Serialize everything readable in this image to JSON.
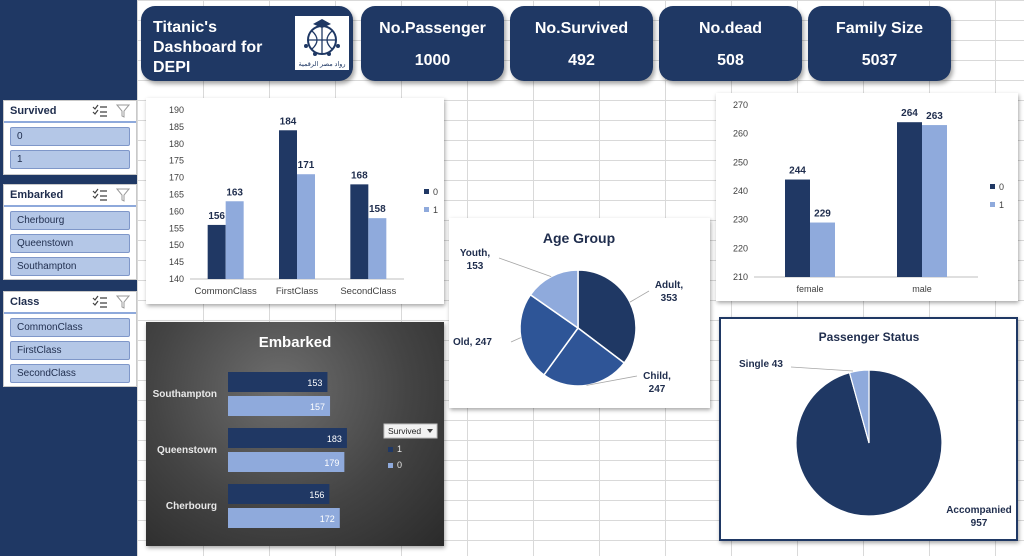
{
  "colors": {
    "navy": "#1f3864",
    "dark_bar": "#203864",
    "light_bar": "#8faadc",
    "pie_mid": "#2f5597"
  },
  "header": {
    "title": "Titanic's Dashboard for DEPI",
    "logo_caption": "رواد مصر الرقمية",
    "kpis": [
      {
        "label": "No.Passenger",
        "value": "1000"
      },
      {
        "label": "No.Survived",
        "value": "492"
      },
      {
        "label": "No.dead",
        "value": "508"
      },
      {
        "label": "Family Size",
        "value": "5037"
      }
    ]
  },
  "slicers": [
    {
      "title": "Survived",
      "items": [
        "0",
        "1"
      ]
    },
    {
      "title": "Embarked",
      "items": [
        "Cherbourg",
        "Queenstown",
        "Southampton"
      ]
    },
    {
      "title": "Class",
      "items": [
        "CommonClass",
        "FirstClass",
        "SecondClass"
      ]
    }
  ],
  "chart_data": [
    {
      "type": "bar",
      "categories": [
        "CommonClass",
        "FirstClass",
        "SecondClass"
      ],
      "series": [
        {
          "name": "0",
          "values": [
            156,
            184,
            168
          ]
        },
        {
          "name": "1",
          "values": [
            163,
            171,
            158
          ]
        }
      ],
      "ylim": [
        140,
        190
      ],
      "yticks": [
        140,
        145,
        150,
        155,
        160,
        165,
        170,
        175,
        180,
        185,
        190
      ],
      "legend": "right",
      "grid": false
    },
    {
      "type": "bar",
      "categories": [
        "female",
        "male"
      ],
      "series": [
        {
          "name": "0",
          "values": [
            244,
            264
          ]
        },
        {
          "name": "1",
          "values": [
            229,
            263
          ]
        }
      ],
      "ylim": [
        210,
        270
      ],
      "yticks": [
        210,
        220,
        230,
        240,
        250,
        260,
        270
      ],
      "legend": "right",
      "grid": false
    },
    {
      "type": "pie",
      "title": "Age Group",
      "slices": [
        {
          "label": "Adult",
          "value": 353
        },
        {
          "label": "Child",
          "value": 247
        },
        {
          "label": "Old",
          "value": 247
        },
        {
          "label": "Youth",
          "value": 153
        }
      ]
    },
    {
      "type": "bar",
      "orientation": "horizontal",
      "title": "Embarked",
      "categories": [
        "Southampton",
        "Queenstown",
        "Cherbourg"
      ],
      "series": [
        {
          "name": "1",
          "values": [
            153,
            183,
            156
          ]
        },
        {
          "name": "0",
          "values": [
            157,
            179,
            172
          ]
        }
      ],
      "legend_title": "Survived",
      "legend": "right"
    },
    {
      "type": "pie",
      "title": "Passenger Status",
      "slices": [
        {
          "label": "Accompanied",
          "value": 957
        },
        {
          "label": "Single",
          "value": 43
        }
      ]
    }
  ]
}
